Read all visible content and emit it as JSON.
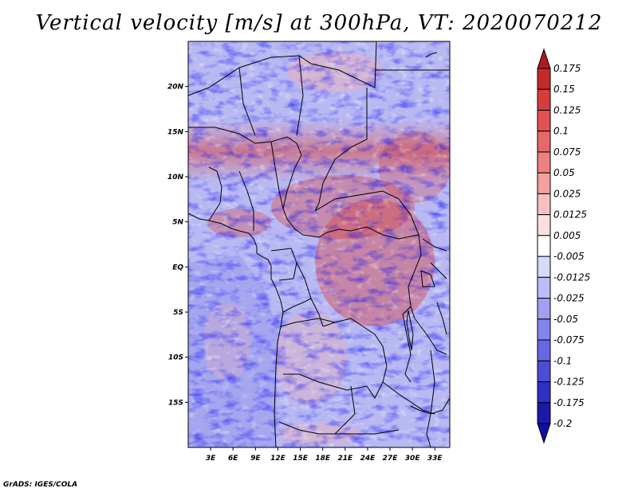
{
  "title": "Vertical velocity [m/s] at 300hPa, VT: 2020070212",
  "credit": "GrADS: IGES/COLA",
  "map": {
    "lon_range": [
      0,
      35
    ],
    "lat_range": [
      -20,
      25
    ],
    "lat_ticks": [
      "20N",
      "15N",
      "10N",
      "5N",
      "EQ",
      "5S",
      "10S",
      "15S"
    ],
    "lat_values": [
      20,
      15,
      10,
      5,
      0,
      -5,
      -10,
      -15
    ],
    "lon_ticks": [
      "3E",
      "6E",
      "9E",
      "12E",
      "15E",
      "18E",
      "21E",
      "24E",
      "27E",
      "30E",
      "33E"
    ],
    "lon_values": [
      3,
      6,
      9,
      12,
      15,
      18,
      21,
      24,
      27,
      30,
      33
    ]
  },
  "colorbar": {
    "labels": [
      "0.175",
      "0.15",
      "0.125",
      "0.1",
      "0.075",
      "0.05",
      "0.025",
      "0.0125",
      "0.005",
      "-0.005",
      "-0.0125",
      "-0.025",
      "-0.05",
      "-0.075",
      "-0.1",
      "-0.125",
      "-0.175",
      "-0.2"
    ],
    "colors": [
      "#b01a1a",
      "#c42a2a",
      "#d63c3c",
      "#e25252",
      "#e86868",
      "#ee8080",
      "#f4a0a0",
      "#f8c0c0",
      "#fbdede",
      "#ffffff",
      "#d8d8fb",
      "#bcbcf6",
      "#a0a0f0",
      "#8484ea",
      "#6868e2",
      "#4c4cd6",
      "#3030c4",
      "#1a1aa8",
      "#1010a0"
    ]
  }
}
